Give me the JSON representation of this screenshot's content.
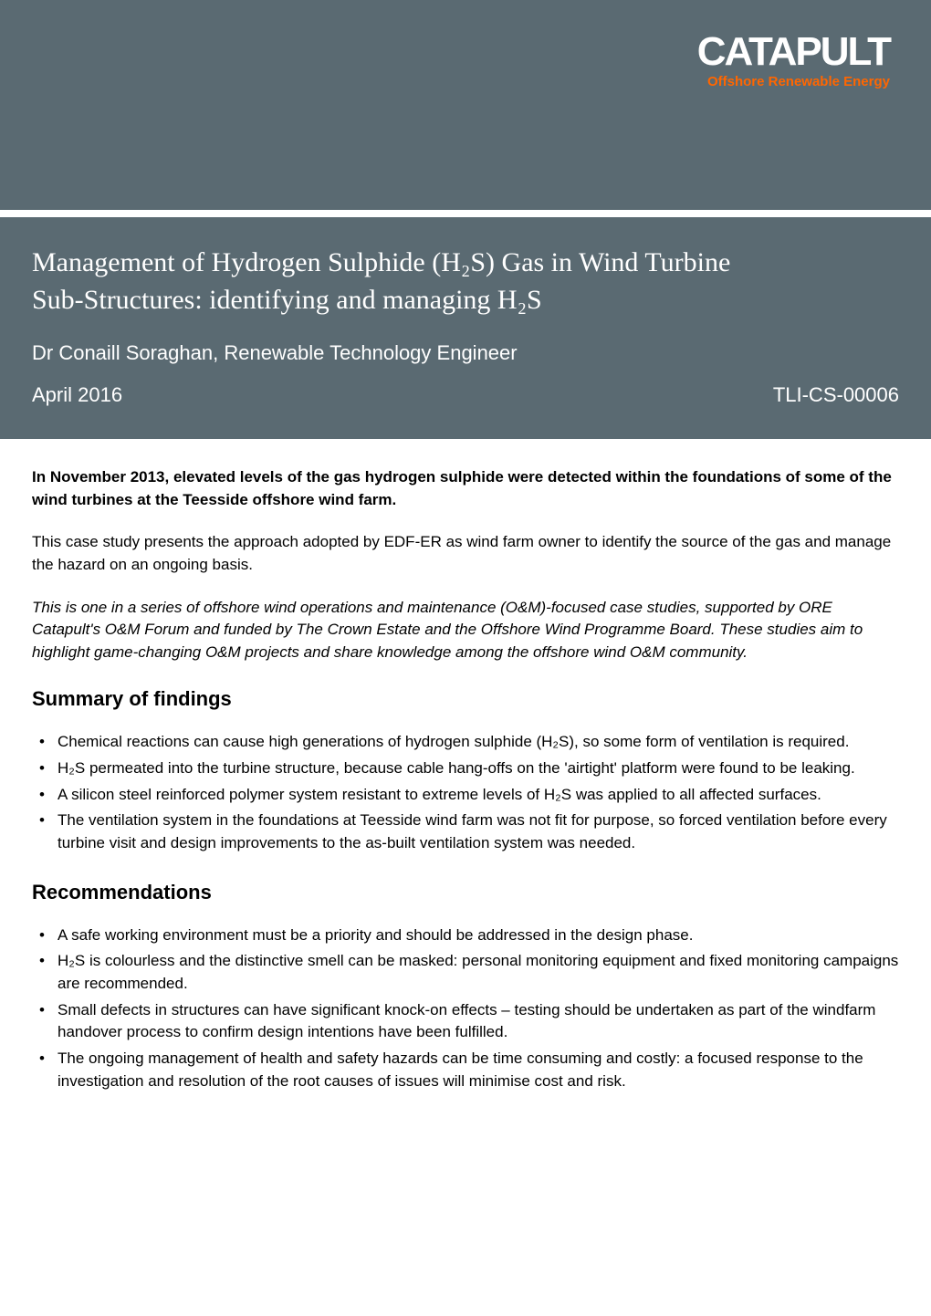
{
  "logo": {
    "main": "CATAPULT",
    "sub": "Offshore Renewable Energy"
  },
  "colors": {
    "header_bg": "#5a6a72",
    "logo_accent": "#ff6600",
    "text": "#000000",
    "white": "#ffffff",
    "page_bg": "#ffffff"
  },
  "typography": {
    "title_fontsize": 30,
    "subtitle_fontsize": 22,
    "body_fontsize": 17,
    "heading_fontsize": 22,
    "logo_main_fontsize": 44,
    "logo_sub_fontsize": 15
  },
  "title": {
    "line1": "Management of Hydrogen Sulphide (H₂S) Gas in Wind Turbine",
    "line2": "Sub-Structures: identifying and managing H₂S"
  },
  "subtitle": "Dr Conaill Soraghan, Renewable Technology Engineer",
  "date": "April 2016",
  "doc_ref": "TLI-CS-00006",
  "intro_bold": "In November 2013, elevated levels of the gas hydrogen sulphide were detected within the foundations of some of the wind turbines at the Teesside offshore wind farm.",
  "intro_p1": "This case study presents the approach adopted by EDF-ER as wind farm owner to identify the source of the gas and manage the hazard on an ongoing basis.",
  "intro_italic": "This is one in a series of offshore wind operations and maintenance (O&M)-focused case studies, supported by ORE Catapult's O&M Forum and funded by The Crown Estate and the Offshore Wind Programme Board. These studies aim to highlight game-changing O&M projects and share knowledge among the offshore wind O&M community.",
  "section1": {
    "heading": "Summary of findings",
    "bullets": [
      "Chemical reactions can cause high generations of hydrogen sulphide (H₂S), so some form of ventilation is required.",
      "H₂S permeated into the turbine structure, because cable hang-offs on the 'airtight' platform were found to be leaking.",
      "A silicon steel reinforced polymer system resistant to extreme levels of H₂S was applied to all affected surfaces.",
      "The ventilation system in the foundations at Teesside wind farm was not fit for purpose, so forced ventilation before every turbine visit and design improvements to the as-built ventilation system was needed."
    ]
  },
  "section2": {
    "heading": "Recommendations",
    "bullets": [
      "A safe working environment must be a priority and should be addressed in the design phase.",
      "H₂S is colourless and the distinctive smell can be masked: personal monitoring equipment and fixed monitoring campaigns are recommended.",
      "Small defects in structures can have significant knock-on effects – testing should be undertaken as part of the windfarm handover process to confirm design intentions have been fulfilled.",
      "The ongoing management of health and safety hazards can be time consuming and costly: a focused response to the investigation and resolution of the root causes of issues will minimise cost and risk."
    ]
  }
}
